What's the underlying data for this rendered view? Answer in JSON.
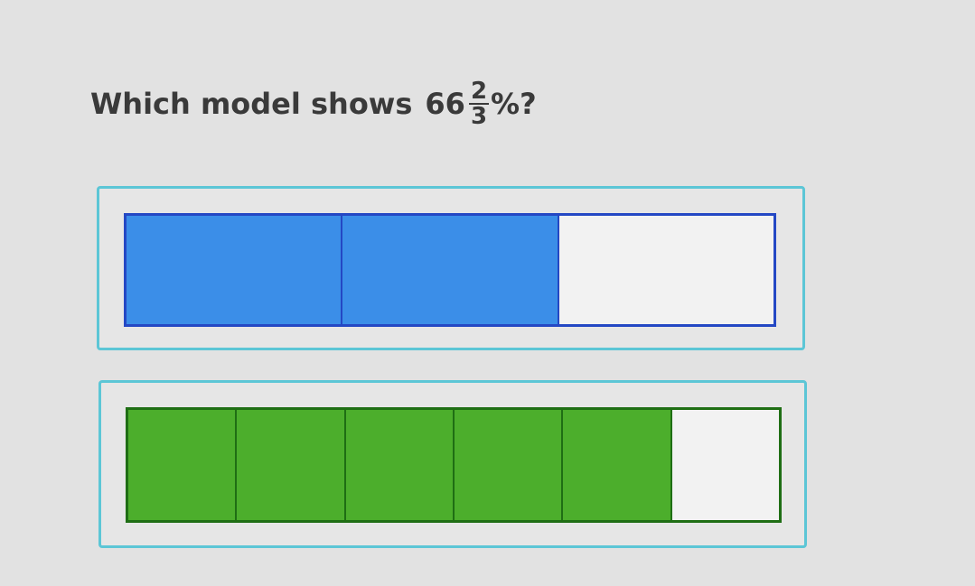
{
  "question": {
    "prefix": "Which model shows",
    "whole": "66",
    "numerator": "2",
    "denominator": "3",
    "suffix": "%?"
  },
  "options": [
    {
      "name": "blue-model",
      "segments": 3,
      "filled": 2,
      "fill_color": "#3b8ee8",
      "border_color": "#2448c4"
    },
    {
      "name": "green-model",
      "segments": 6,
      "filled": 5,
      "fill_color": "#4cae2c",
      "border_color": "#1f6e14"
    }
  ],
  "colors": {
    "option_border": "#5cc6d6",
    "background": "#e2e2e2",
    "text": "#3a3a3a"
  }
}
